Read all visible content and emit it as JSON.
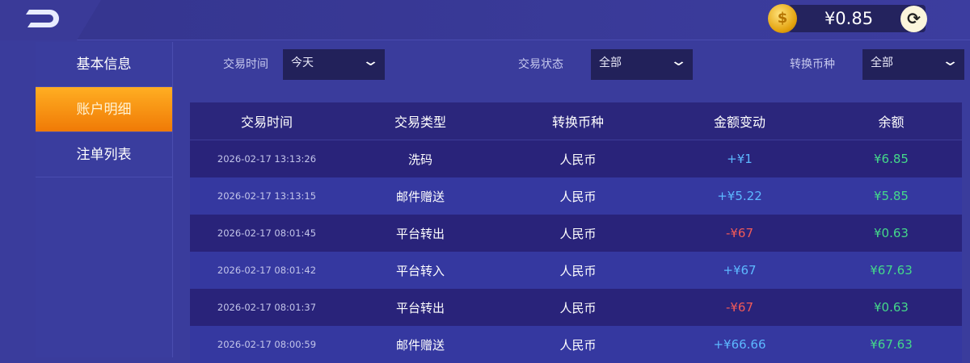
{
  "header": {
    "back_icon": "back-arrow-icon",
    "balance": "¥0.85",
    "coin_icon": "gold-coin-icon",
    "refresh_icon": "refresh-icon"
  },
  "sidebar": {
    "items": [
      {
        "label": "基本信息"
      },
      {
        "label": "账户明细",
        "active": true
      },
      {
        "label": "注单列表"
      }
    ]
  },
  "filters": [
    {
      "label": "交易时间",
      "value": "今天"
    },
    {
      "label": "交易状态",
      "value": "全部"
    },
    {
      "label": "转换币种",
      "value": "全部"
    }
  ],
  "table": {
    "columns": [
      "交易时间",
      "交易类型",
      "转换币种",
      "金额变动",
      "余额"
    ],
    "rows": [
      {
        "time": "2026-02-17 13:13:26",
        "type": "洗码",
        "currency": "人民币",
        "change": "+¥1",
        "balance": "¥6.85"
      },
      {
        "time": "2026-02-17 13:13:15",
        "type": "邮件赠送",
        "currency": "人民币",
        "change": "+¥5.22",
        "balance": "¥5.85"
      },
      {
        "time": "2026-02-17 08:01:45",
        "type": "平台转出",
        "currency": "人民币",
        "change": "-¥67",
        "balance": "¥0.63"
      },
      {
        "time": "2026-02-17 08:01:42",
        "type": "平台转入",
        "currency": "人民币",
        "change": "+¥67",
        "balance": "¥67.63"
      },
      {
        "time": "2026-02-17 08:01:37",
        "type": "平台转出",
        "currency": "人民币",
        "change": "-¥67",
        "balance": "¥0.63"
      },
      {
        "time": "2026-02-17 08:00:59",
        "type": "邮件赠送",
        "currency": "人民币",
        "change": "+¥66.66",
        "balance": "¥67.63"
      }
    ]
  },
  "colors": {
    "positive": "#5db8ff",
    "negative": "#f05a58",
    "balance": "#44d88a",
    "active_tab": "#f58a0c"
  }
}
